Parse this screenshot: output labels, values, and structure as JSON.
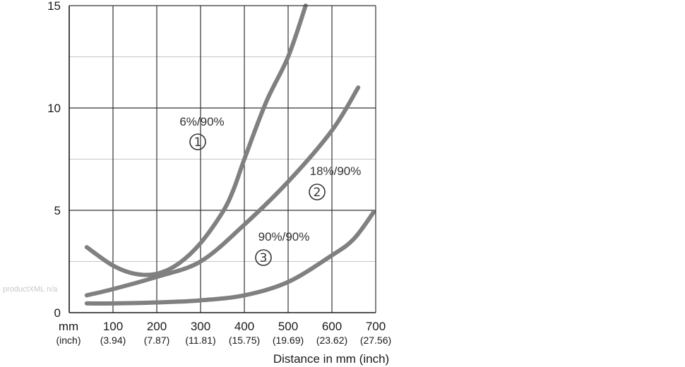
{
  "chart_data": {
    "type": "line",
    "x_unit_label": "mm",
    "x_unit_label_inch": "(inch)",
    "xlabel": "Distance in mm (inch)",
    "ylabel": "",
    "xlim": [
      0,
      700
    ],
    "ylim": [
      0,
      15
    ],
    "x_ticks": [
      {
        "value": 100,
        "label": "100",
        "sublabel": "(3.94)"
      },
      {
        "value": 200,
        "label": "200",
        "sublabel": "(7.87)"
      },
      {
        "value": 300,
        "label": "300",
        "sublabel": "(11.81)"
      },
      {
        "value": 400,
        "label": "400",
        "sublabel": "(15.75)"
      },
      {
        "value": 500,
        "label": "500",
        "sublabel": "(19.69)"
      },
      {
        "value": 600,
        "label": "600",
        "sublabel": "(23.62)"
      },
      {
        "value": 700,
        "label": "700",
        "sublabel": "(27.56)"
      }
    ],
    "y_ticks": [
      {
        "value": 0,
        "label": "0"
      },
      {
        "value": 5,
        "label": "5"
      },
      {
        "value": 10,
        "label": "10"
      },
      {
        "value": 15,
        "label": "15"
      }
    ],
    "grid": true,
    "grid_minor_y": [
      2.5,
      7.5,
      12.5
    ],
    "series": [
      {
        "name": "6%/90%",
        "marker": "①",
        "color": "#808080",
        "x": [
          40,
          100,
          150,
          200,
          250,
          300,
          350,
          375,
          400,
          450,
          500,
          540
        ],
        "y": [
          3.2,
          2.3,
          1.9,
          1.9,
          2.4,
          3.4,
          4.9,
          6.0,
          7.5,
          10.3,
          12.5,
          15.0
        ]
      },
      {
        "name": "18%/90%",
        "marker": "②",
        "color": "#808080",
        "x": [
          40,
          100,
          200,
          300,
          400,
          500,
          600,
          660
        ],
        "y": [
          0.85,
          1.15,
          1.75,
          2.5,
          4.3,
          6.4,
          8.9,
          11.0
        ]
      },
      {
        "name": "90%/90%",
        "marker": "③",
        "color": "#808080",
        "x": [
          40,
          100,
          200,
          300,
          400,
          500,
          600,
          650,
          695
        ],
        "y": [
          0.45,
          0.45,
          0.5,
          0.6,
          0.85,
          1.5,
          2.8,
          3.6,
          4.9
        ]
      }
    ]
  },
  "watermark": "productXML n/a"
}
